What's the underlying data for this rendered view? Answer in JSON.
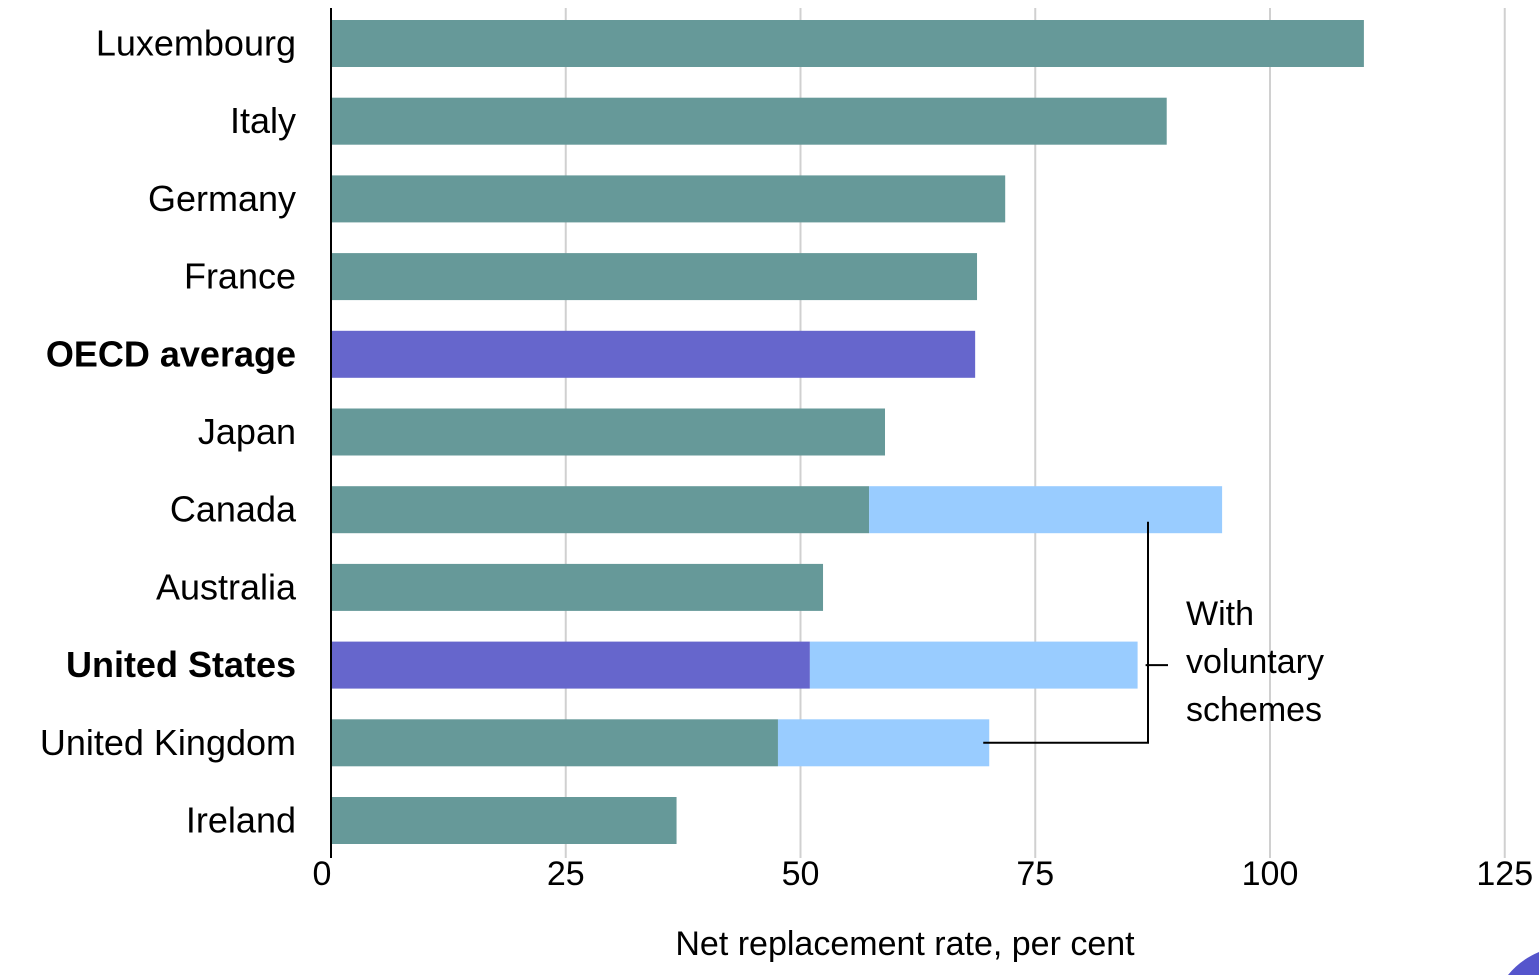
{
  "chart_data": {
    "type": "bar",
    "orientation": "horizontal",
    "stacked": true,
    "categories": [
      "Luxembourg",
      "Italy",
      "Germany",
      "France",
      "OECD average",
      "Japan",
      "Canada",
      "Australia",
      "United States",
      "United Kingdom",
      "Ireland"
    ],
    "highlighted": [
      "OECD average",
      "United States"
    ],
    "series": [
      {
        "key": "mandatory",
        "values": [
          110.0,
          89.0,
          71.8,
          68.8,
          68.6,
          59.0,
          57.3,
          52.4,
          51.0,
          47.6,
          36.8
        ],
        "color": "#669999",
        "highlight_color": "#6666cc"
      },
      {
        "key": "voluntary",
        "name": "With voluntary schemes",
        "values": [
          null,
          null,
          null,
          null,
          null,
          null,
          37.6,
          null,
          34.9,
          22.5,
          null
        ],
        "color": "#99ccff"
      }
    ],
    "xlabel": "Net replacement rate, per cent",
    "xlim": [
      0,
      125
    ],
    "xticks": [
      "0",
      "25",
      "50",
      "75",
      "100",
      "125"
    ],
    "grid": true,
    "annotation": {
      "lines": [
        "With",
        "voluntary",
        "schemes"
      ],
      "points_to": [
        "Canada",
        "United States",
        "United Kingdom"
      ]
    }
  }
}
